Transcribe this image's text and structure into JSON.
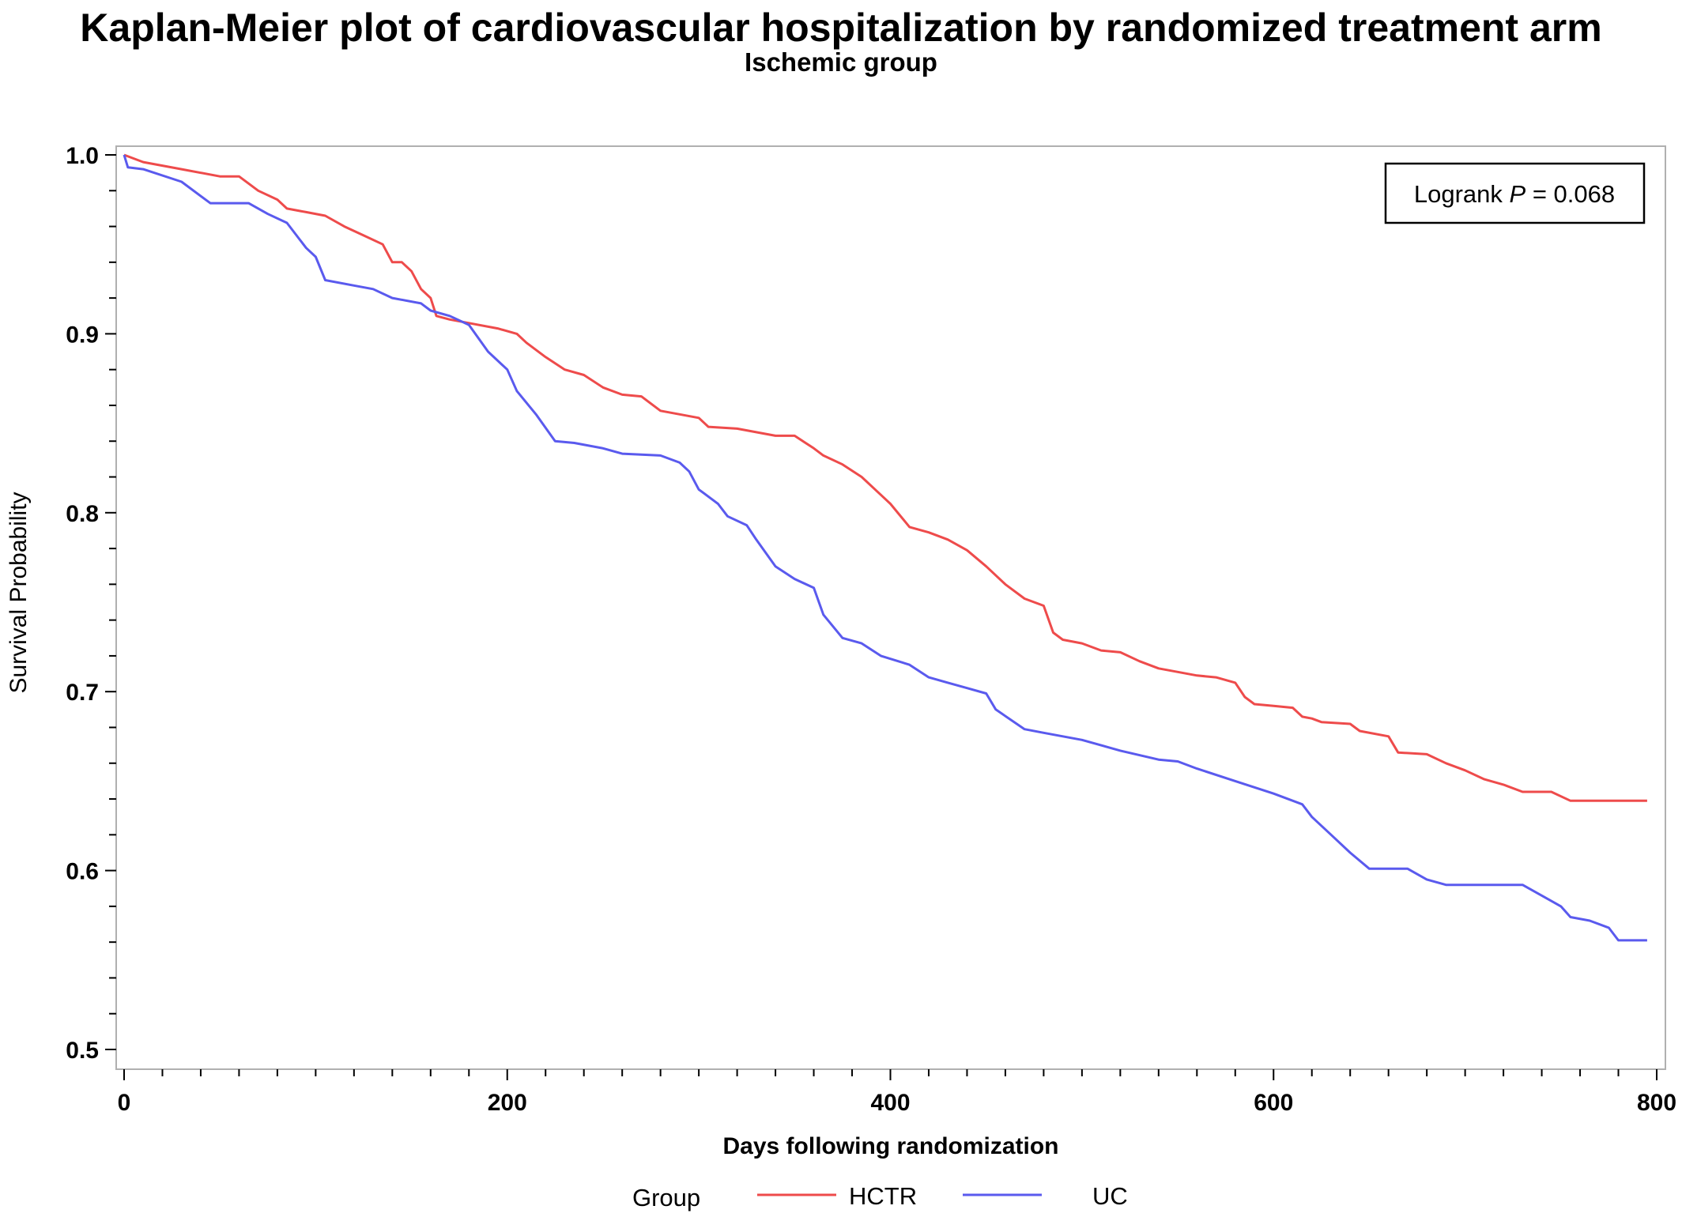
{
  "chart_data": {
    "type": "line",
    "title": "Kaplan-Meier plot of cardiovascular hospitalization by randomized treatment arm",
    "subtitle": "Ischemic group",
    "xlabel": "Days following randomization",
    "ylabel": "Survival Probability",
    "xlim": [
      0,
      800
    ],
    "ylim": [
      0.5,
      1.0
    ],
    "x_ticks": [
      "0",
      "200",
      "400",
      "600",
      "800"
    ],
    "y_ticks": [
      "0.5",
      "0.6",
      "0.7",
      "0.8",
      "0.9",
      "1.0"
    ],
    "annotation": {
      "prefix": "Logrank ",
      "italic": "P",
      "suffix": " = 0.068"
    },
    "legend": {
      "title": "Group",
      "position": "bottom"
    },
    "series": [
      {
        "name": "HCTR",
        "color": "#ee4b4b",
        "points": [
          [
            0,
            1.0
          ],
          [
            10,
            0.996
          ],
          [
            30,
            0.992
          ],
          [
            50,
            0.988
          ],
          [
            60,
            0.988
          ],
          [
            70,
            0.98
          ],
          [
            80,
            0.975
          ],
          [
            85,
            0.97
          ],
          [
            95,
            0.968
          ],
          [
            105,
            0.966
          ],
          [
            115,
            0.96
          ],
          [
            125,
            0.955
          ],
          [
            135,
            0.95
          ],
          [
            140,
            0.94
          ],
          [
            145,
            0.94
          ],
          [
            150,
            0.935
          ],
          [
            155,
            0.925
          ],
          [
            160,
            0.92
          ],
          [
            163,
            0.91
          ],
          [
            170,
            0.908
          ],
          [
            180,
            0.906
          ],
          [
            195,
            0.903
          ],
          [
            205,
            0.9
          ],
          [
            210,
            0.895
          ],
          [
            220,
            0.887
          ],
          [
            230,
            0.88
          ],
          [
            240,
            0.877
          ],
          [
            250,
            0.87
          ],
          [
            260,
            0.866
          ],
          [
            270,
            0.865
          ],
          [
            280,
            0.857
          ],
          [
            290,
            0.855
          ],
          [
            300,
            0.853
          ],
          [
            305,
            0.848
          ],
          [
            320,
            0.847
          ],
          [
            330,
            0.845
          ],
          [
            340,
            0.843
          ],
          [
            350,
            0.843
          ],
          [
            360,
            0.836
          ],
          [
            365,
            0.832
          ],
          [
            375,
            0.827
          ],
          [
            385,
            0.82
          ],
          [
            395,
            0.81
          ],
          [
            400,
            0.805
          ],
          [
            410,
            0.792
          ],
          [
            420,
            0.789
          ],
          [
            430,
            0.785
          ],
          [
            440,
            0.779
          ],
          [
            450,
            0.77
          ],
          [
            460,
            0.76
          ],
          [
            470,
            0.752
          ],
          [
            480,
            0.748
          ],
          [
            485,
            0.733
          ],
          [
            490,
            0.729
          ],
          [
            500,
            0.727
          ],
          [
            510,
            0.723
          ],
          [
            520,
            0.722
          ],
          [
            530,
            0.717
          ],
          [
            540,
            0.713
          ],
          [
            550,
            0.711
          ],
          [
            560,
            0.709
          ],
          [
            570,
            0.708
          ],
          [
            580,
            0.705
          ],
          [
            585,
            0.697
          ],
          [
            590,
            0.693
          ],
          [
            600,
            0.692
          ],
          [
            610,
            0.691
          ],
          [
            615,
            0.686
          ],
          [
            620,
            0.685
          ],
          [
            625,
            0.683
          ],
          [
            640,
            0.682
          ],
          [
            645,
            0.678
          ],
          [
            660,
            0.675
          ],
          [
            665,
            0.666
          ],
          [
            680,
            0.665
          ],
          [
            690,
            0.66
          ],
          [
            700,
            0.656
          ],
          [
            710,
            0.651
          ],
          [
            720,
            0.648
          ],
          [
            730,
            0.644
          ],
          [
            745,
            0.644
          ],
          [
            755,
            0.639
          ],
          [
            770,
            0.639
          ],
          [
            795,
            0.639
          ]
        ]
      },
      {
        "name": "UC",
        "color": "#5a5aee",
        "points": [
          [
            0,
            1.0
          ],
          [
            2,
            0.993
          ],
          [
            10,
            0.992
          ],
          [
            30,
            0.985
          ],
          [
            45,
            0.973
          ],
          [
            65,
            0.973
          ],
          [
            75,
            0.967
          ],
          [
            85,
            0.962
          ],
          [
            95,
            0.948
          ],
          [
            100,
            0.943
          ],
          [
            105,
            0.93
          ],
          [
            120,
            0.927
          ],
          [
            130,
            0.925
          ],
          [
            140,
            0.92
          ],
          [
            155,
            0.917
          ],
          [
            160,
            0.913
          ],
          [
            170,
            0.91
          ],
          [
            180,
            0.905
          ],
          [
            190,
            0.89
          ],
          [
            200,
            0.88
          ],
          [
            205,
            0.868
          ],
          [
            215,
            0.855
          ],
          [
            225,
            0.84
          ],
          [
            235,
            0.839
          ],
          [
            250,
            0.836
          ],
          [
            260,
            0.833
          ],
          [
            280,
            0.832
          ],
          [
            290,
            0.828
          ],
          [
            295,
            0.823
          ],
          [
            300,
            0.813
          ],
          [
            310,
            0.805
          ],
          [
            315,
            0.798
          ],
          [
            325,
            0.793
          ],
          [
            330,
            0.785
          ],
          [
            340,
            0.77
          ],
          [
            350,
            0.763
          ],
          [
            360,
            0.758
          ],
          [
            365,
            0.743
          ],
          [
            375,
            0.73
          ],
          [
            385,
            0.727
          ],
          [
            395,
            0.72
          ],
          [
            410,
            0.715
          ],
          [
            420,
            0.708
          ],
          [
            430,
            0.705
          ],
          [
            440,
            0.702
          ],
          [
            450,
            0.699
          ],
          [
            455,
            0.69
          ],
          [
            470,
            0.679
          ],
          [
            480,
            0.677
          ],
          [
            500,
            0.673
          ],
          [
            520,
            0.667
          ],
          [
            540,
            0.662
          ],
          [
            550,
            0.661
          ],
          [
            560,
            0.657
          ],
          [
            580,
            0.65
          ],
          [
            600,
            0.643
          ],
          [
            615,
            0.637
          ],
          [
            620,
            0.63
          ],
          [
            630,
            0.62
          ],
          [
            640,
            0.61
          ],
          [
            650,
            0.601
          ],
          [
            670,
            0.601
          ],
          [
            680,
            0.595
          ],
          [
            690,
            0.592
          ],
          [
            730,
            0.592
          ],
          [
            740,
            0.586
          ],
          [
            750,
            0.58
          ],
          [
            755,
            0.574
          ],
          [
            765,
            0.572
          ],
          [
            775,
            0.568
          ],
          [
            780,
            0.561
          ],
          [
            795,
            0.561
          ]
        ]
      }
    ]
  }
}
